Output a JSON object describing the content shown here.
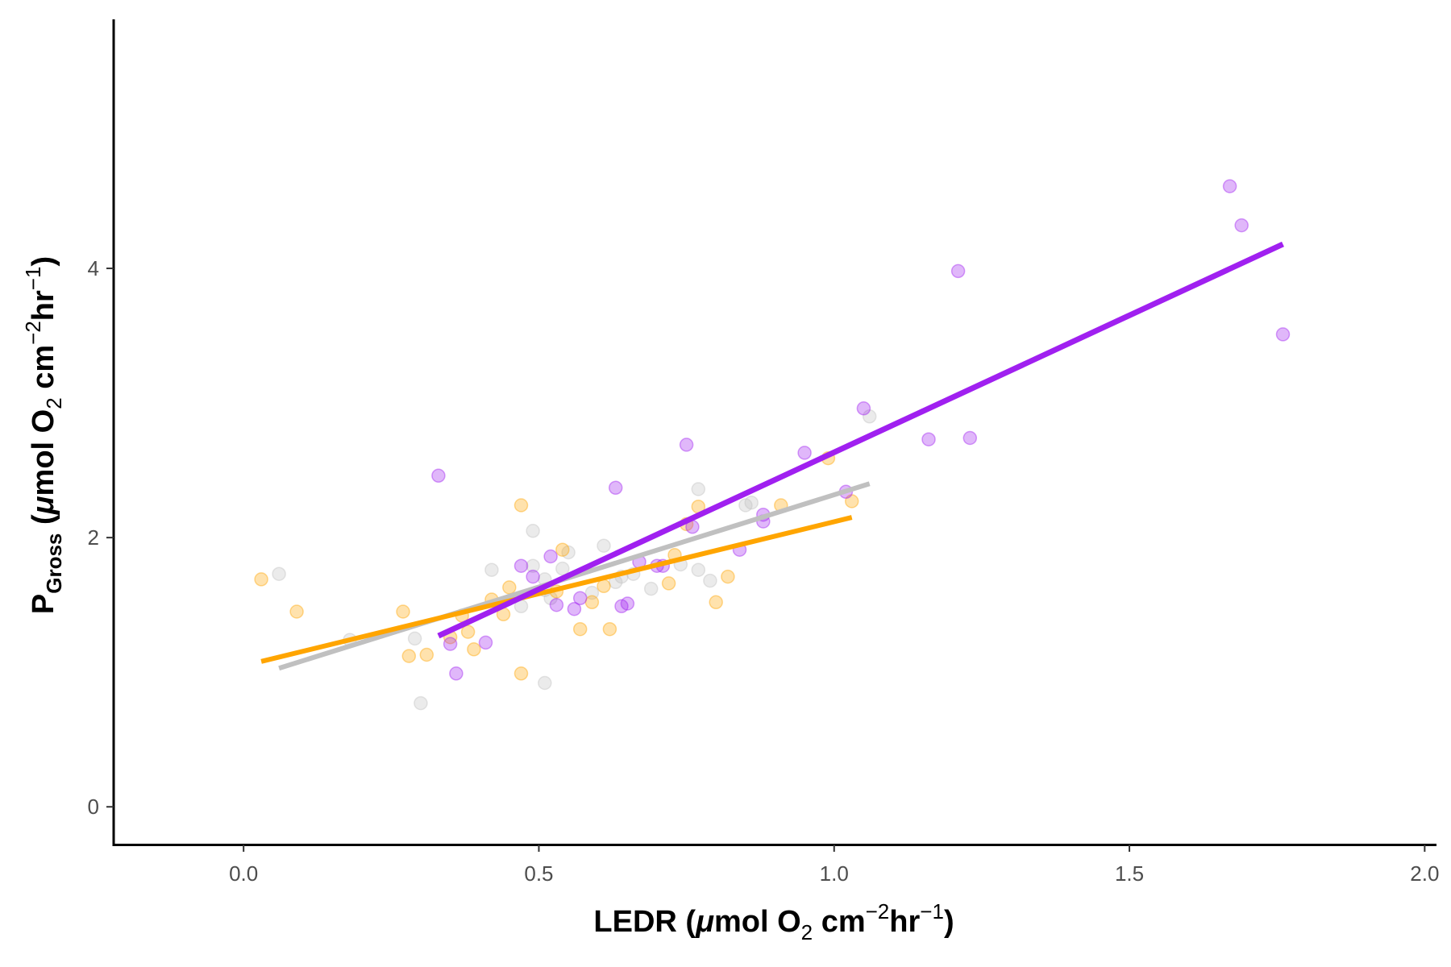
{
  "chart_data": {
    "type": "scatter",
    "xlabel": {
      "prefix": "LEDR (",
      "mu": "μ",
      "mid": "mol O",
      "sub": "2",
      "units": " cm",
      "sup1": "−2",
      "hr": "hr",
      "sup2": "−1",
      "suffix": ")"
    },
    "ylabel": {
      "p": "P",
      "psub": "Gross",
      "open": " (",
      "mu": "μ",
      "mid": "mol O",
      "sub": "2",
      "units": " cm",
      "sup1": "−2",
      "hr": "hr",
      "sup2": "−1",
      "suffix": ")"
    },
    "xlim": [
      -0.22,
      2.02
    ],
    "ylim": [
      -0.28,
      5.85
    ],
    "x_ticks": [
      0.0,
      0.5,
      1.0,
      1.5,
      2.0
    ],
    "x_tick_labels": [
      "0.0",
      "0.5",
      "1.0",
      "1.5",
      "2.0"
    ],
    "y_ticks": [
      0,
      2,
      4
    ],
    "y_tick_labels": [
      "0",
      "2",
      "4"
    ],
    "grid": false,
    "legend": "none",
    "series": [
      {
        "color": "#c0c0c0",
        "points": [
          [
            0.06,
            1.73
          ],
          [
            0.18,
            1.24
          ],
          [
            0.29,
            1.25
          ],
          [
            0.3,
            0.77
          ],
          [
            0.42,
            1.76
          ],
          [
            0.47,
            1.49
          ],
          [
            0.49,
            1.79
          ],
          [
            0.49,
            2.05
          ],
          [
            0.51,
            1.61
          ],
          [
            0.51,
            1.69
          ],
          [
            0.52,
            1.55
          ],
          [
            0.54,
            1.77
          ],
          [
            0.55,
            1.89
          ],
          [
            0.59,
            1.59
          ],
          [
            0.61,
            1.94
          ],
          [
            0.63,
            1.67
          ],
          [
            0.64,
            1.71
          ],
          [
            0.66,
            1.73
          ],
          [
            0.69,
            1.62
          ],
          [
            0.74,
            1.8
          ],
          [
            0.77,
            1.76
          ],
          [
            0.77,
            2.36
          ],
          [
            0.79,
            1.68
          ],
          [
            0.85,
            2.24
          ],
          [
            0.86,
            2.26
          ],
          [
            1.06,
            2.9
          ],
          [
            0.51,
            0.92
          ]
        ],
        "fit": [
          [
            0.06,
            1.03
          ],
          [
            1.06,
            2.4
          ]
        ]
      },
      {
        "color": "#ffa500",
        "points": [
          [
            0.03,
            1.69
          ],
          [
            0.09,
            1.45
          ],
          [
            0.27,
            1.45
          ],
          [
            0.28,
            1.12
          ],
          [
            0.31,
            1.13
          ],
          [
            0.35,
            1.26
          ],
          [
            0.37,
            1.42
          ],
          [
            0.38,
            1.3
          ],
          [
            0.39,
            1.17
          ],
          [
            0.42,
            1.54
          ],
          [
            0.44,
            1.43
          ],
          [
            0.45,
            1.63
          ],
          [
            0.47,
            0.99
          ],
          [
            0.47,
            2.24
          ],
          [
            0.53,
            1.6
          ],
          [
            0.54,
            1.91
          ],
          [
            0.57,
            1.32
          ],
          [
            0.59,
            1.52
          ],
          [
            0.61,
            1.64
          ],
          [
            0.62,
            1.32
          ],
          [
            0.72,
            1.66
          ],
          [
            0.73,
            1.87
          ],
          [
            0.75,
            2.1
          ],
          [
            0.77,
            2.23
          ],
          [
            0.8,
            1.52
          ],
          [
            0.82,
            1.71
          ],
          [
            0.91,
            2.24
          ],
          [
            0.99,
            2.59
          ],
          [
            1.03,
            2.27
          ]
        ],
        "fit": [
          [
            0.03,
            1.08
          ],
          [
            1.03,
            2.15
          ]
        ]
      },
      {
        "color": "#a020f0",
        "points": [
          [
            0.33,
            2.46
          ],
          [
            0.35,
            1.21
          ],
          [
            0.36,
            0.99
          ],
          [
            0.41,
            1.22
          ],
          [
            0.47,
            1.79
          ],
          [
            0.49,
            1.71
          ],
          [
            0.52,
            1.86
          ],
          [
            0.53,
            1.5
          ],
          [
            0.56,
            1.47
          ],
          [
            0.57,
            1.55
          ],
          [
            0.63,
            2.37
          ],
          [
            0.64,
            1.49
          ],
          [
            0.65,
            1.51
          ],
          [
            0.67,
            1.82
          ],
          [
            0.7,
            1.79
          ],
          [
            0.71,
            1.79
          ],
          [
            0.75,
            2.69
          ],
          [
            0.76,
            2.08
          ],
          [
            0.84,
            1.91
          ],
          [
            0.88,
            2.17
          ],
          [
            0.88,
            2.12
          ],
          [
            0.95,
            2.63
          ],
          [
            1.02,
            2.34
          ],
          [
            1.05,
            2.96
          ],
          [
            1.16,
            2.73
          ],
          [
            1.21,
            3.98
          ],
          [
            1.23,
            2.74
          ],
          [
            1.67,
            4.61
          ],
          [
            1.69,
            4.32
          ],
          [
            1.76,
            3.51
          ]
        ],
        "fit": [
          [
            0.33,
            1.27
          ],
          [
            1.76,
            4.18
          ]
        ]
      }
    ]
  }
}
